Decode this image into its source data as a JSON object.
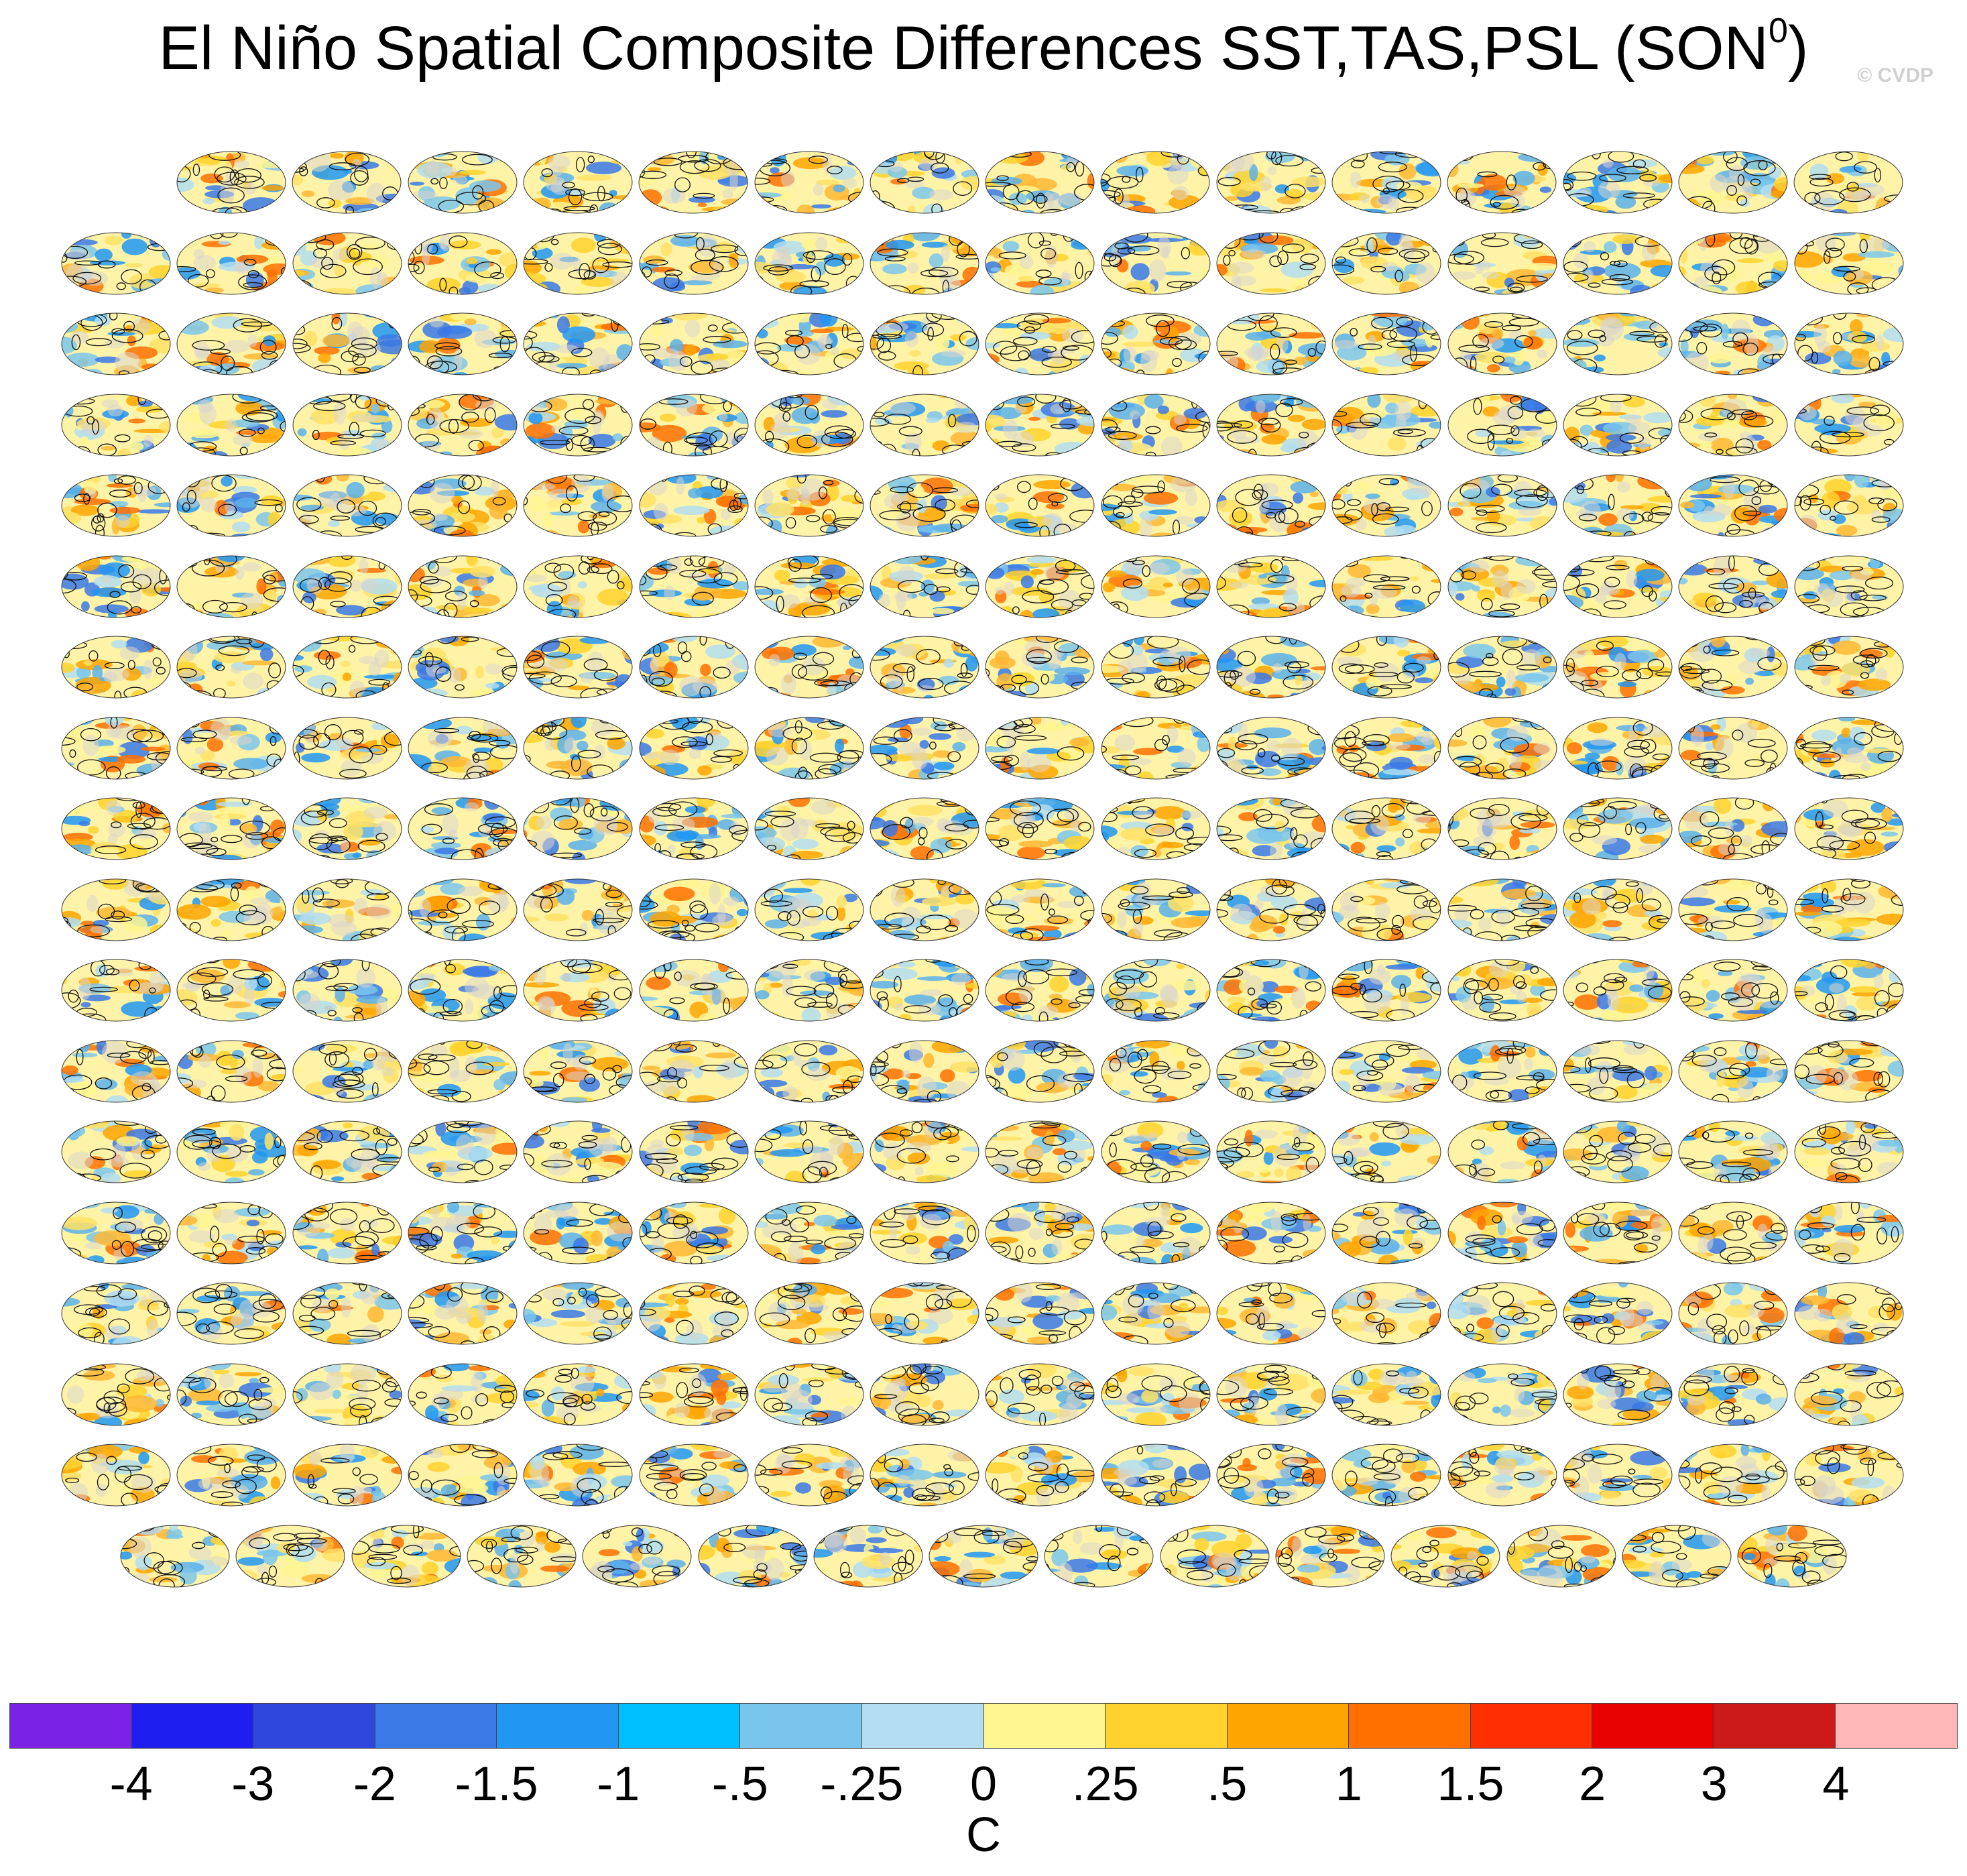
{
  "title": "El Niño Spatial Composite Differences SST,TAS,PSL (SON",
  "title_superscript": "0",
  "title_close": ")",
  "watermark": "© CVDP",
  "panel_title_color": "#6a8fb5",
  "chart_data": {
    "type": "heatmap",
    "description_of_layout": "grid of global map panels",
    "rows": 18,
    "panels_per_row": [
      15,
      16,
      16,
      16,
      16,
      16,
      16,
      16,
      16,
      16,
      16,
      16,
      16,
      16,
      16,
      16,
      16,
      15
    ],
    "colorbar": {
      "units": "C",
      "tick_labels": [
        "-4",
        "-3",
        "-2",
        "-1.5",
        "-1",
        "-.5",
        "-.25",
        "0",
        ".25",
        ".5",
        "1",
        "1.5",
        "2",
        "3",
        "4"
      ],
      "colors": [
        "#7a22e6",
        "#1e1ef0",
        "#2e46dc",
        "#3a78e6",
        "#2196f3",
        "#00bfff",
        "#7ac5ec",
        "#b2ddf0",
        "#fff591",
        "#ffd22e",
        "#ffa500",
        "#ff7000",
        "#ff3000",
        "#e60000",
        "#cc1a1a",
        "#ffb6b6"
      ]
    }
  }
}
